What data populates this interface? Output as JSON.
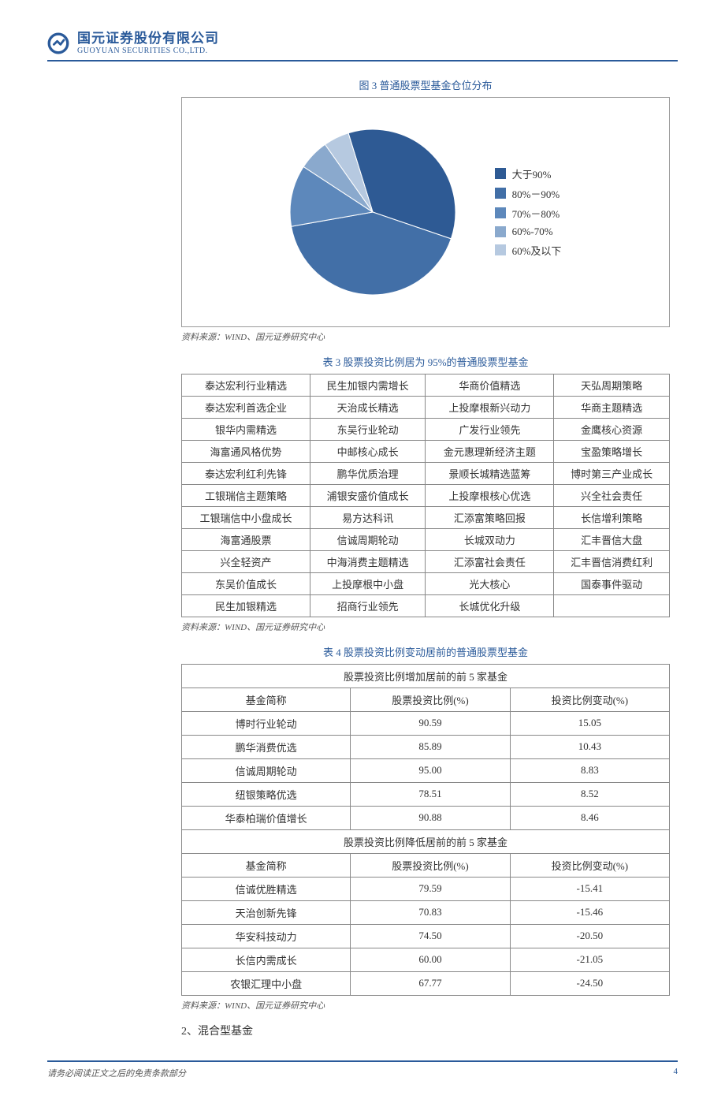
{
  "header": {
    "company_cn": "国元证券股份有限公司",
    "company_en": "GUOYUAN SECURITIES CO.,LTD.",
    "logo_color": "#2a5a9a"
  },
  "chart": {
    "title": "图 3 普通股票型基金仓位分布",
    "type": "pie",
    "background_color": "#ffffff",
    "legend_prefix": "■",
    "slices": [
      {
        "label": "大于90%",
        "value": 35,
        "color": "#2e5a94"
      },
      {
        "label": "80%－90%",
        "value": 42,
        "color": "#426fa7"
      },
      {
        "label": "70%－80%",
        "value": 12,
        "color": "#5d88bb"
      },
      {
        "label": "60%-70%",
        "value": 6,
        "color": "#8aa9cd"
      },
      {
        "label": "60%及以下",
        "value": 5,
        "color": "#b6c9e0"
      }
    ],
    "source": "资料来源：WIND、国元证券研究中心"
  },
  "table3": {
    "title": "表 3 股票投资比例居为 95%的普通股票型基金",
    "rows": [
      [
        "泰达宏利行业精选",
        "民生加银内需增长",
        "华商价值精选",
        "天弘周期策略"
      ],
      [
        "泰达宏利首选企业",
        "天治成长精选",
        "上投摩根新兴动力",
        "华商主题精选"
      ],
      [
        "银华内需精选",
        "东吴行业轮动",
        "广发行业领先",
        "金鹰核心资源"
      ],
      [
        "海富通风格优势",
        "中邮核心成长",
        "金元惠理新经济主题",
        "宝盈策略增长"
      ],
      [
        "泰达宏利红利先锋",
        "鹏华优质治理",
        "景顺长城精选蓝筹",
        "博时第三产业成长"
      ],
      [
        "工银瑞信主题策略",
        "浦银安盛价值成长",
        "上投摩根核心优选",
        "兴全社会责任"
      ],
      [
        "工银瑞信中小盘成长",
        "易方达科讯",
        "汇添富策略回报",
        "长信增利策略"
      ],
      [
        "海富通股票",
        "信诚周期轮动",
        "长城双动力",
        "汇丰晋信大盘"
      ],
      [
        "兴全轻资产",
        "中海消费主题精选",
        "汇添富社会责任",
        "汇丰晋信消费红利"
      ],
      [
        "东吴价值成长",
        "上投摩根中小盘",
        "光大核心",
        "国泰事件驱动"
      ],
      [
        "民生加银精选",
        "招商行业领先",
        "长城优化升级",
        ""
      ]
    ],
    "source": "资料来源：WIND、国元证券研究中心"
  },
  "table4": {
    "title": "表 4 股票投资比例变动居前的普通股票型基金",
    "header_top": "股票投资比例增加居前的前 5 家基金",
    "columns": [
      "基金简称",
      "股票投资比例(%)",
      "投资比例变动(%)"
    ],
    "rows_up": [
      [
        "博时行业轮动",
        "90.59",
        "15.05"
      ],
      [
        "鹏华消费优选",
        "85.89",
        "10.43"
      ],
      [
        "信诚周期轮动",
        "95.00",
        "8.83"
      ],
      [
        "纽银策略优选",
        "78.51",
        "8.52"
      ],
      [
        "华泰柏瑞价值增长",
        "90.88",
        "8.46"
      ]
    ],
    "header_bottom": "股票投资比例降低居前的前 5 家基金",
    "rows_down": [
      [
        "信诚优胜精选",
        "79.59",
        "-15.41"
      ],
      [
        "天治创新先锋",
        "70.83",
        "-15.46"
      ],
      [
        "华安科技动力",
        "74.50",
        "-20.50"
      ],
      [
        "长信内需成长",
        "60.00",
        "-21.05"
      ],
      [
        "农银汇理中小盘",
        "67.77",
        "-24.50"
      ]
    ],
    "source": "资料来源：WIND、国元证券研究中心"
  },
  "section2": "2、混合型基金",
  "footer": {
    "left": "请务必阅读正文之后的免责条款部分",
    "page": "4"
  }
}
